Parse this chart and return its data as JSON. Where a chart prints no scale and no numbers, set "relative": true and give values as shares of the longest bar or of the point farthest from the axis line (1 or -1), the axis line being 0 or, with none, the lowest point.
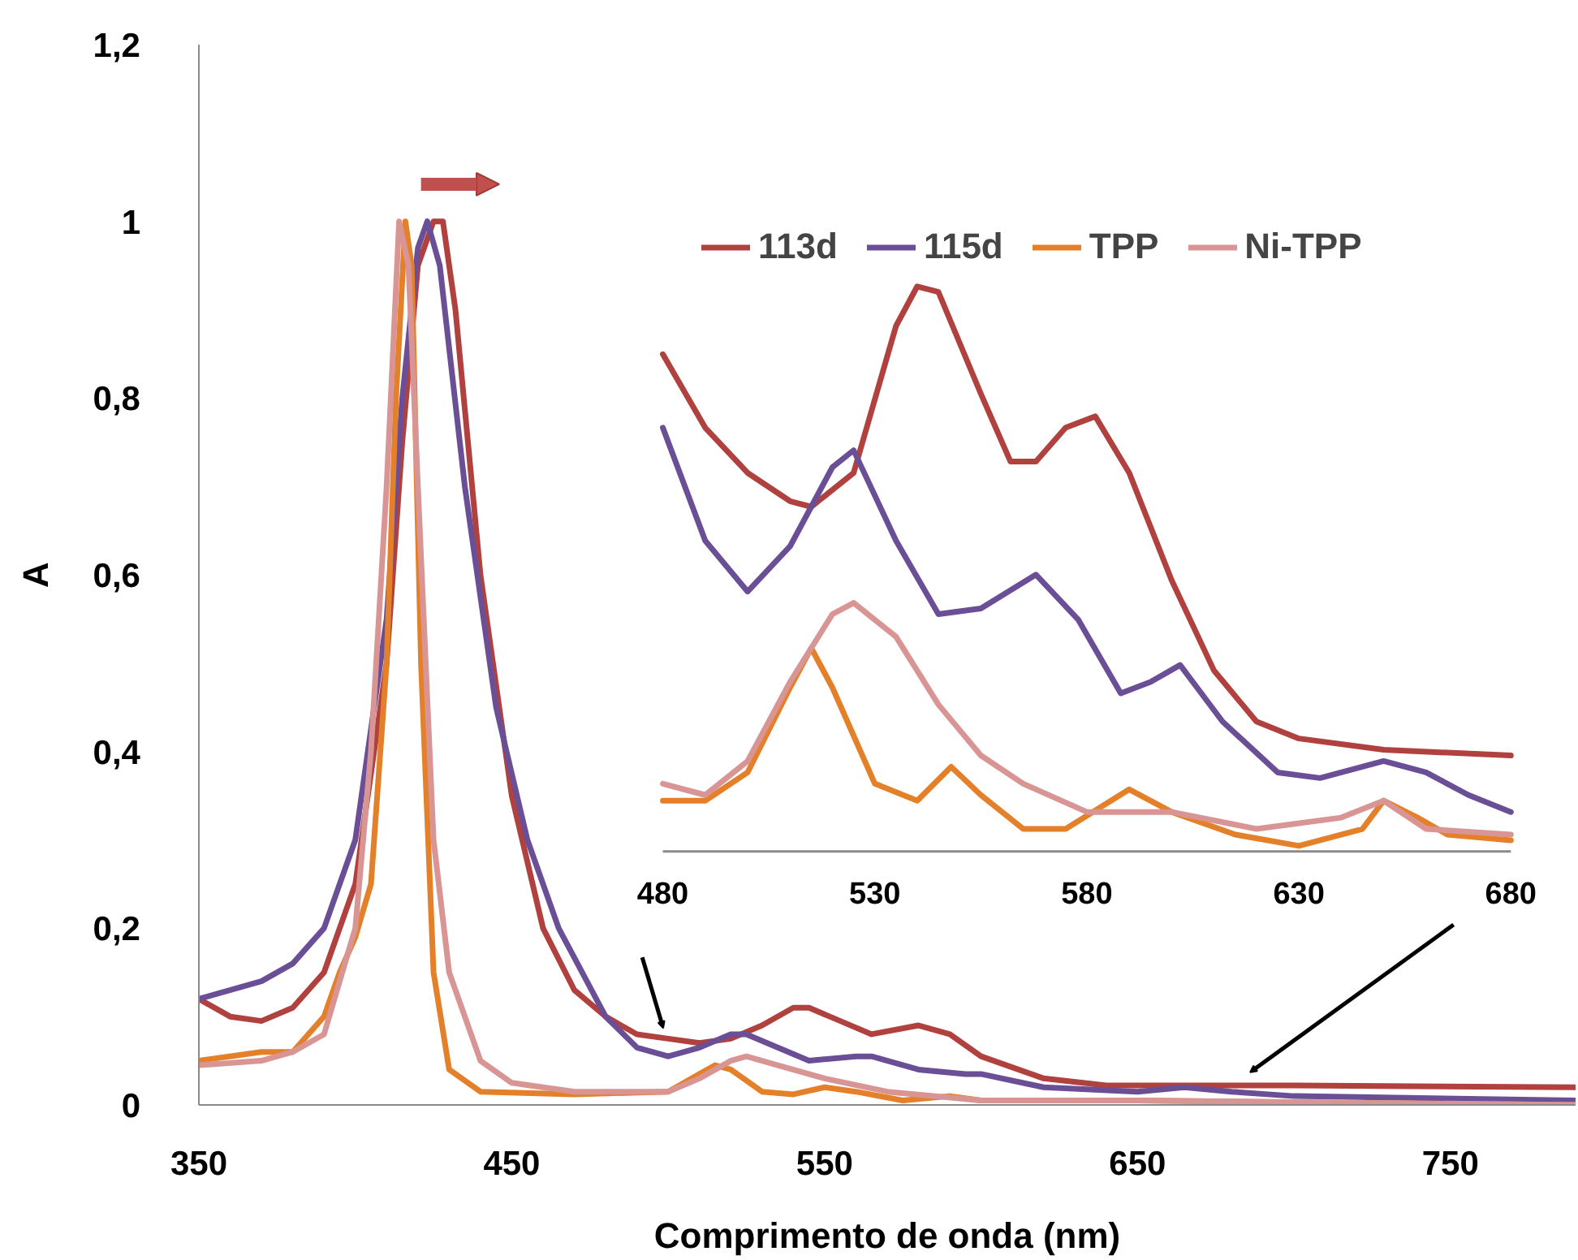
{
  "chart_data": [
    {
      "type": "line",
      "xlabel": "Comprimento de onda (nm)",
      "ylabel": "A",
      "xlim": [
        350,
        790
      ],
      "xticks": [
        350,
        450,
        550,
        650,
        750
      ],
      "ylim": [
        0,
        1.2
      ],
      "yticks": [
        0,
        {
          "value": 0.2,
          "label": "0,2"
        },
        {
          "value": 0.4,
          "label": "0,4"
        },
        {
          "value": 0.6,
          "label": "0,6"
        },
        {
          "value": 0.8,
          "label": "0,8"
        },
        1,
        {
          "value": 1.2,
          "label": "1,2"
        }
      ],
      "grid": false,
      "legend": "top right",
      "series": [
        {
          "name": "113d",
          "color": "#b0413e",
          "x": [
            350,
            360,
            370,
            380,
            390,
            400,
            410,
            415,
            420,
            425,
            428,
            432,
            440,
            450,
            460,
            470,
            480,
            490,
            500,
            510,
            520,
            530,
            540,
            545,
            555,
            565,
            580,
            590,
            600,
            620,
            640,
            700,
            790
          ],
          "values": [
            0.12,
            0.1,
            0.095,
            0.11,
            0.15,
            0.25,
            0.5,
            0.75,
            0.95,
            1.0,
            1.0,
            0.9,
            0.6,
            0.35,
            0.2,
            0.13,
            0.1,
            0.08,
            0.075,
            0.07,
            0.075,
            0.09,
            0.11,
            0.11,
            0.095,
            0.08,
            0.09,
            0.08,
            0.055,
            0.03,
            0.022,
            0.022,
            0.02
          ]
        },
        {
          "name": "115d",
          "color": "#6b4f96",
          "x": [
            350,
            370,
            380,
            390,
            400,
            410,
            415,
            420,
            423,
            427,
            435,
            445,
            455,
            465,
            480,
            490,
            500,
            510,
            520,
            525,
            535,
            545,
            560,
            565,
            580,
            595,
            600,
            620,
            650,
            665,
            680,
            700,
            790
          ],
          "values": [
            0.12,
            0.14,
            0.16,
            0.2,
            0.3,
            0.55,
            0.8,
            0.97,
            1.0,
            0.95,
            0.7,
            0.45,
            0.3,
            0.2,
            0.1,
            0.065,
            0.055,
            0.065,
            0.08,
            0.08,
            0.065,
            0.05,
            0.055,
            0.055,
            0.04,
            0.035,
            0.035,
            0.02,
            0.015,
            0.02,
            0.015,
            0.01,
            0.005
          ]
        },
        {
          "name": "TPP",
          "color": "#e5802a",
          "x": [
            350,
            370,
            380,
            390,
            395,
            400,
            405,
            410,
            413,
            416,
            418,
            421,
            425,
            430,
            440,
            470,
            500,
            510,
            515,
            520,
            530,
            540,
            550,
            560,
            575,
            590,
            600,
            650,
            700,
            790
          ],
          "values": [
            0.05,
            0.06,
            0.06,
            0.1,
            0.15,
            0.19,
            0.25,
            0.5,
            0.8,
            1.0,
            0.95,
            0.5,
            0.15,
            0.04,
            0.015,
            0.012,
            0.015,
            0.035,
            0.045,
            0.04,
            0.015,
            0.012,
            0.02,
            0.015,
            0.005,
            0.01,
            0.005,
            0.005,
            0.003,
            0
          ]
        },
        {
          "name": "Ni-TPP",
          "color": "#d99594",
          "x": [
            350,
            370,
            380,
            390,
            400,
            405,
            410,
            414,
            417,
            420,
            425,
            430,
            440,
            450,
            470,
            500,
            510,
            520,
            525,
            535,
            550,
            570,
            600,
            650,
            790
          ],
          "values": [
            0.045,
            0.05,
            0.06,
            0.08,
            0.2,
            0.4,
            0.7,
            1.0,
            0.95,
            0.7,
            0.3,
            0.15,
            0.05,
            0.025,
            0.015,
            0.015,
            0.03,
            0.05,
            0.055,
            0.045,
            0.03,
            0.015,
            0.005,
            0.005,
            0
          ]
        }
      ]
    },
    {
      "type": "line",
      "relative": true,
      "xlim": [
        480,
        680
      ],
      "xticks": [
        480,
        530,
        580,
        630,
        680
      ],
      "series": [
        {
          "color": "#b0413e",
          "x": [
            480,
            490,
            500,
            510,
            515,
            525,
            535,
            540,
            545,
            555,
            562,
            568,
            575,
            582,
            590,
            600,
            610,
            620,
            630,
            650,
            680
          ],
          "values": [
            0.88,
            0.75,
            0.67,
            0.62,
            0.61,
            0.67,
            0.93,
            1.0,
            0.99,
            0.81,
            0.69,
            0.69,
            0.75,
            0.77,
            0.67,
            0.48,
            0.32,
            0.23,
            0.2,
            0.18,
            0.17
          ]
        },
        {
          "color": "#6b4f96",
          "x": [
            480,
            490,
            500,
            510,
            520,
            525,
            535,
            545,
            555,
            568,
            578,
            588,
            595,
            602,
            612,
            625,
            635,
            650,
            660,
            670,
            680
          ],
          "values": [
            0.75,
            0.55,
            0.46,
            0.54,
            0.68,
            0.71,
            0.55,
            0.42,
            0.43,
            0.49,
            0.41,
            0.28,
            0.3,
            0.33,
            0.23,
            0.14,
            0.13,
            0.16,
            0.14,
            0.1,
            0.07
          ]
        },
        {
          "color": "#e5802a",
          "x": [
            480,
            490,
            500,
            510,
            515,
            520,
            530,
            540,
            548,
            555,
            565,
            575,
            590,
            600,
            615,
            630,
            645,
            650,
            658,
            665,
            680
          ],
          "values": [
            0.09,
            0.09,
            0.14,
            0.29,
            0.36,
            0.29,
            0.12,
            0.09,
            0.15,
            0.1,
            0.04,
            0.04,
            0.11,
            0.07,
            0.03,
            0.01,
            0.04,
            0.09,
            0.06,
            0.03,
            0.02
          ]
        },
        {
          "color": "#d99594",
          "x": [
            480,
            490,
            500,
            510,
            520,
            525,
            535,
            545,
            555,
            565,
            580,
            600,
            620,
            640,
            650,
            660,
            680
          ],
          "values": [
            0.12,
            0.1,
            0.16,
            0.3,
            0.42,
            0.44,
            0.38,
            0.26,
            0.17,
            0.12,
            0.07,
            0.07,
            0.04,
            0.06,
            0.09,
            0.04,
            0.03
          ]
        }
      ]
    }
  ]
}
